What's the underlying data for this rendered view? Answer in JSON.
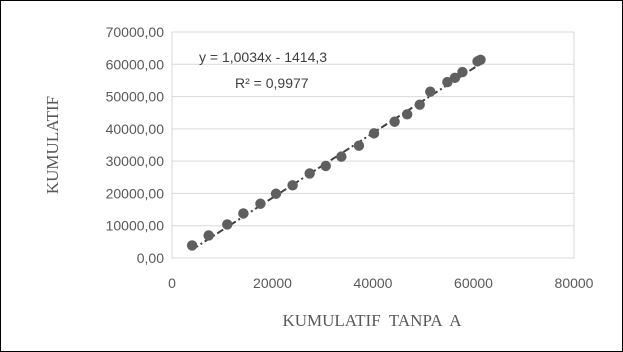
{
  "chart_data": {
    "type": "scatter",
    "title": "",
    "xlabel": "KUMULATIF  TANPA  A",
    "ylabel": "KUMULATIF",
    "xlim": [
      0,
      80000
    ],
    "ylim": [
      0,
      70000
    ],
    "x_ticks": [
      "0",
      "20000",
      "40000",
      "60000",
      "80000"
    ],
    "y_ticks": [
      "0,00",
      "10000,00",
      "20000,00",
      "30000,00",
      "40000,00",
      "50000,00",
      "60000,00",
      "70000,00"
    ],
    "grid": "horizontal",
    "legend": "none",
    "marker_color": "#5f5f5f",
    "trendline": {
      "style": "dash-dot",
      "color": "#404040",
      "slope": 1.0034,
      "intercept": -1414.3,
      "equation_label": "y = 1,0034x - 1414,3",
      "r2_label": "R² = 0,9977"
    },
    "x": [
      4000,
      7300,
      11000,
      14200,
      17600,
      20700,
      24000,
      27400,
      30600,
      33700,
      37200,
      40200,
      44300,
      46800,
      49300,
      51400,
      54800,
      56300,
      57800,
      60800,
      61400
    ],
    "y": [
      3900,
      7000,
      10400,
      13800,
      16800,
      19900,
      22500,
      26200,
      28500,
      31400,
      34800,
      38600,
      42200,
      44500,
      47500,
      51500,
      54500,
      55800,
      57600,
      60900,
      61400
    ]
  }
}
